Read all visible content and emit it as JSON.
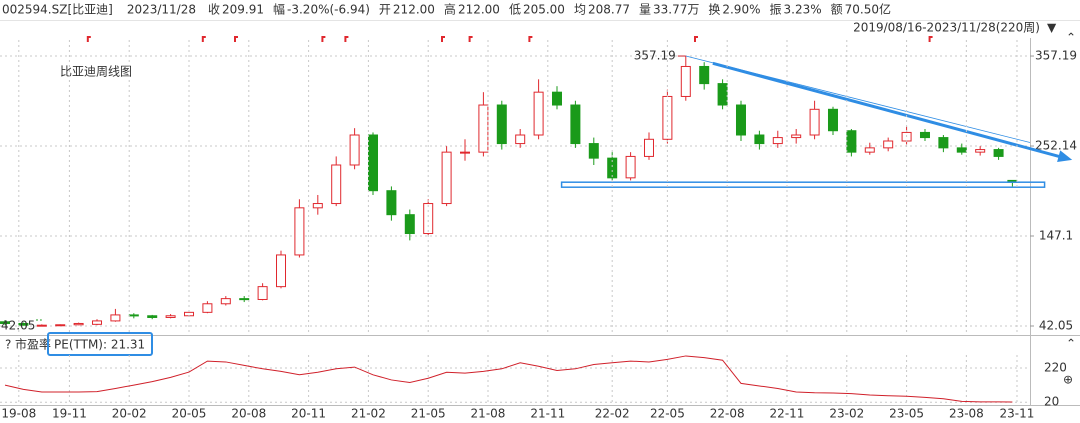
{
  "header": {
    "code": "002594.SZ[比亚迪]",
    "date": "2023/11/28",
    "items": [
      {
        "label": "收",
        "value": "209.91",
        "color": "#1a9a1a"
      },
      {
        "label": "幅",
        "value": "-3.20%(-6.94)",
        "color": "#1a9a1a"
      },
      {
        "label": "开",
        "value": "212.00",
        "color": "#d0202a"
      },
      {
        "label": "高",
        "value": "212.00",
        "color": "#d0202a"
      },
      {
        "label": "低",
        "value": "205.00",
        "color": "#1a9a1a"
      },
      {
        "label": "均",
        "value": "208.77",
        "color": "#1a9a1a"
      },
      {
        "label": "量",
        "value": "33.77万",
        "color": "#333333"
      },
      {
        "label": "换",
        "value": "2.90%",
        "color": "#333333"
      },
      {
        "label": "振",
        "value": "3.23%",
        "color": "#333333"
      },
      {
        "label": "额",
        "value": "70.50亿",
        "color": "#333333"
      }
    ],
    "range": "2019/08/16-2023/11/28(220周)"
  },
  "chart_data": [
    {
      "type": "candlestick",
      "title": "比亚迪周线图",
      "x": [
        0,
        4,
        8,
        12,
        16,
        20,
        24,
        28,
        32,
        36,
        40,
        44,
        48,
        52,
        56,
        60,
        64,
        68,
        72,
        76,
        80,
        84,
        88,
        92,
        96,
        100,
        104,
        108,
        112,
        116,
        120,
        124,
        128,
        132,
        136,
        140,
        144,
        148,
        152,
        156,
        160,
        164,
        168,
        172,
        176,
        180,
        184,
        188,
        192,
        196,
        200,
        204,
        208,
        212,
        216,
        219
      ],
      "open": [
        47,
        45,
        43,
        43,
        43.5,
        44,
        48,
        55,
        54,
        52,
        54,
        58,
        68,
        74,
        73,
        88,
        125,
        180,
        185,
        230,
        265,
        200,
        172,
        150,
        185,
        245,
        245,
        300,
        255,
        265,
        315,
        300,
        255,
        238,
        215,
        240,
        260,
        310,
        345,
        325,
        300,
        265,
        255,
        262,
        265,
        295,
        270,
        245,
        250,
        258,
        268,
        262,
        250,
        245,
        248,
        212
      ],
      "high": [
        49,
        46,
        44,
        44,
        46,
        50,
        62,
        57,
        55,
        56,
        60,
        71,
        77,
        77,
        92,
        130,
        190,
        195,
        240,
        273,
        268,
        205,
        178,
        190,
        252,
        260,
        315,
        305,
        272,
        330,
        322,
        305,
        262,
        245,
        245,
        268,
        318,
        357.19,
        350,
        330,
        305,
        270,
        270,
        272,
        305,
        298,
        272,
        256,
        262,
        275,
        272,
        265,
        255,
        252,
        250,
        212
      ],
      "low": [
        43,
        42.5,
        42.05,
        42.5,
        43,
        43,
        47,
        51,
        50,
        51,
        53,
        57,
        66,
        70,
        72,
        86,
        122,
        172,
        182,
        225,
        195,
        165,
        142,
        148,
        182,
        235,
        240,
        248,
        250,
        260,
        295,
        250,
        230,
        212,
        212,
        236,
        255,
        305,
        318,
        295,
        258,
        248,
        250,
        255,
        260,
        265,
        240,
        242,
        246,
        254,
        258,
        245,
        242,
        241,
        236,
        205
      ],
      "close": [
        45,
        43,
        43,
        43.5,
        45,
        48,
        55,
        54,
        52,
        54,
        58,
        68,
        74,
        73,
        88,
        125,
        180,
        185,
        230,
        265,
        200,
        172,
        150,
        185,
        245,
        245,
        300,
        255,
        265,
        315,
        300,
        255,
        238,
        215,
        240,
        260,
        310,
        345,
        325,
        300,
        265,
        255,
        262,
        265,
        295,
        270,
        245,
        250,
        258,
        268,
        262,
        250,
        245,
        248,
        240,
        209.91
      ],
      "up_color": "#e0282e",
      "down_color": "#1a9a1a",
      "xlim": [
        -1.09,
        222.83
      ],
      "ylim": [
        31.55,
        375.9
      ],
      "yticks": [
        42.05,
        147.1,
        252.14,
        357.19
      ],
      "grid": true,
      "max_label": {
        "x": 148,
        "value": 357.19
      },
      "min_label": {
        "x": 8,
        "value": 42.05
      },
      "trendline": {
        "x": [
          148,
          232
        ],
        "y": [
          357.19,
          236
        ],
        "color": "#2f8de4"
      },
      "support": {
        "x": [
          121,
          226
        ],
        "y": 207,
        "color": "#2f8de4"
      },
      "events_x": [
        18,
        43,
        50,
        69,
        74,
        95,
        101,
        114,
        150,
        201
      ]
    },
    {
      "type": "line",
      "title": "市盈率",
      "label": "PE(TTM): 21.31",
      "color": "#d0202a",
      "x": [
        0,
        4,
        8,
        12,
        16,
        20,
        24,
        28,
        32,
        36,
        40,
        44,
        48,
        52,
        56,
        60,
        64,
        68,
        72,
        76,
        80,
        84,
        88,
        92,
        96,
        100,
        104,
        108,
        112,
        116,
        120,
        124,
        128,
        132,
        136,
        140,
        144,
        148,
        152,
        156,
        160,
        164,
        168,
        172,
        176,
        180,
        184,
        188,
        192,
        196,
        200,
        204,
        208,
        212,
        216,
        219
      ],
      "values": [
        120,
        95,
        80,
        80,
        80,
        82,
        100,
        120,
        140,
        165,
        196,
        260,
        255,
        235,
        215,
        200,
        180,
        195,
        215,
        225,
        180,
        150,
        135,
        160,
        195,
        190,
        200,
        215,
        250,
        230,
        205,
        215,
        240,
        250,
        260,
        255,
        270,
        290,
        280,
        265,
        130,
        115,
        100,
        80,
        75,
        74,
        70,
        62,
        58,
        55,
        48,
        40,
        25,
        22,
        22,
        21.31
      ],
      "xlim": [
        -1.09,
        222.83
      ],
      "ylim": [
        -2,
        313
      ],
      "yticks": [
        20,
        220
      ],
      "xticks": [
        {
          "value": 3,
          "label": "19-08"
        },
        {
          "value": 14,
          "label": "19-11"
        },
        {
          "value": 27,
          "label": "20-02"
        },
        {
          "value": 40,
          "label": "20-05"
        },
        {
          "value": 53,
          "label": "20-08"
        },
        {
          "value": 66,
          "label": "20-11"
        },
        {
          "value": 79,
          "label": "21-02"
        },
        {
          "value": 92,
          "label": "21-05"
        },
        {
          "value": 105,
          "label": "21-08"
        },
        {
          "value": 118,
          "label": "21-11"
        },
        {
          "value": 132,
          "label": "22-02"
        },
        {
          "value": 144,
          "label": "22-05"
        },
        {
          "value": 157,
          "label": "22-08"
        },
        {
          "value": 170,
          "label": "22-11"
        },
        {
          "value": 183,
          "label": "23-02"
        },
        {
          "value": 196,
          "label": "23-05"
        },
        {
          "value": 209,
          "label": "23-08"
        },
        {
          "value": 220,
          "label": "23-11"
        }
      ],
      "grid": true
    }
  ]
}
